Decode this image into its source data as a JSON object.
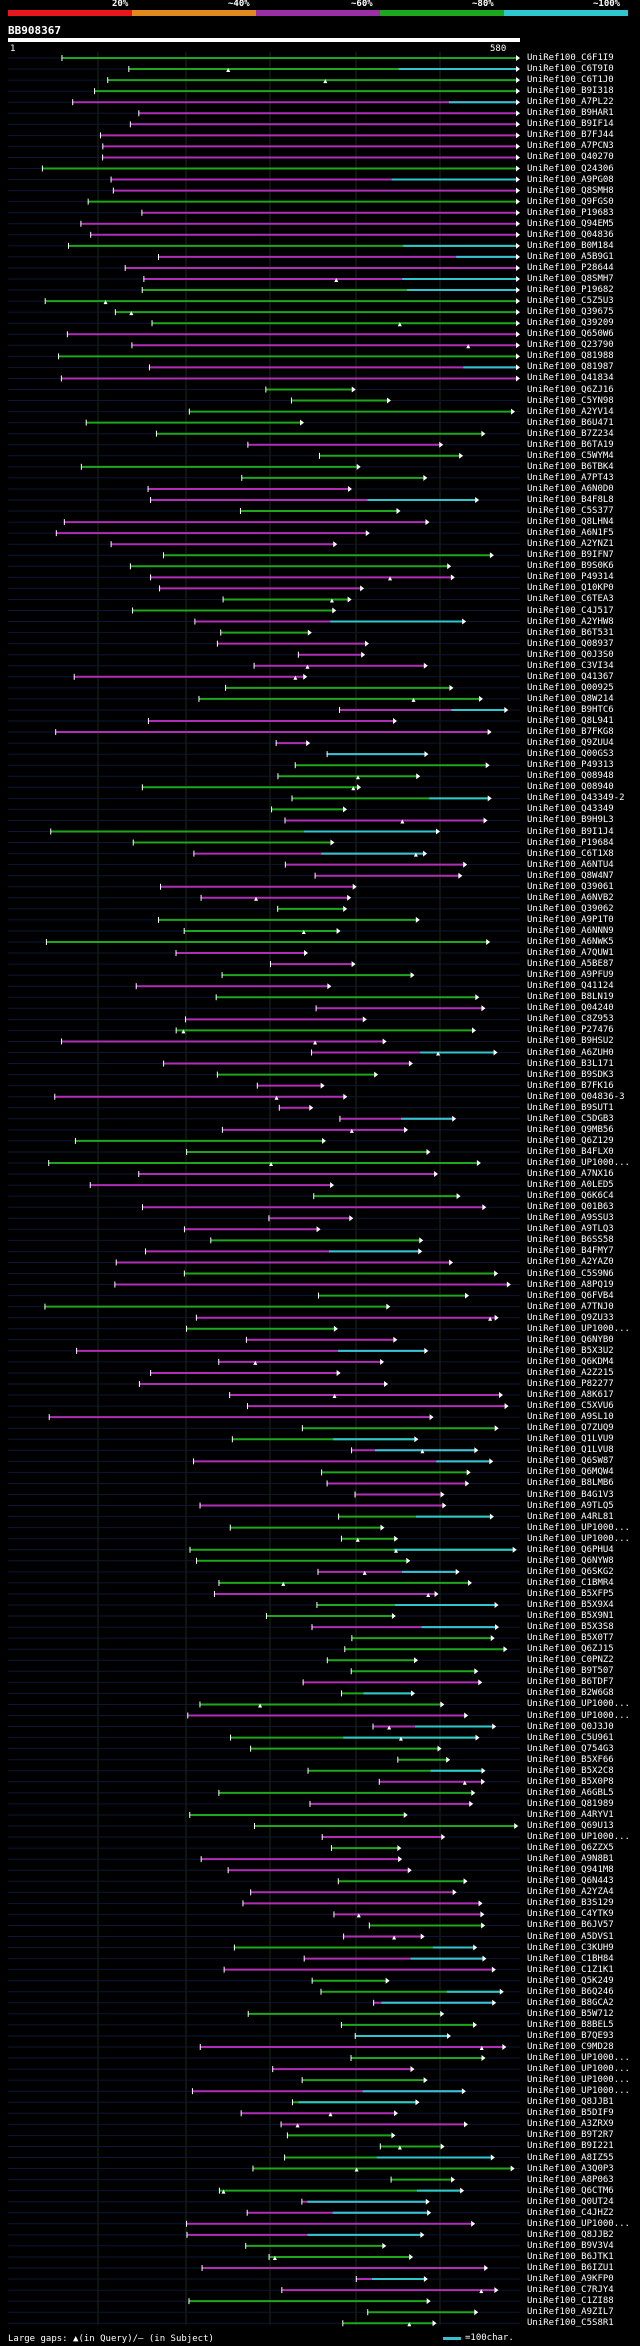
{
  "legend": {
    "labels": [
      "20%",
      "~40%",
      "~60%",
      "~80%",
      "~100%"
    ],
    "colors": [
      "#e8171d",
      "#e08a1f",
      "#9a2fa6",
      "#1ea61e",
      "#2fc7cf"
    ]
  },
  "header": {
    "query_id": "BB908367",
    "ruler_start": "1",
    "ruler_end": "580"
  },
  "footer": {
    "gaps_text": "Large gaps: ▲(in Query)/– (in Subject)",
    "scale_text": "=100char."
  },
  "hits": [
    "UniRef100_C6F1I9",
    "UniRef100_C6T9I0",
    "UniRef100_C6T1J0",
    "UniRef100_B9I318",
    "UniRef100_A7PL22",
    "UniRef100_B9HAR1",
    "UniRef100_B9IF14",
    "UniRef100_B7FJ44",
    "UniRef100_A7PCN3",
    "UniRef100_Q40270",
    "UniRef100_Q24306",
    "UniRef100_A9PG08",
    "UniRef100_Q8SMH8",
    "UniRef100_Q9FGS0",
    "UniRef100_P19683",
    "UniRef100_Q94EM5",
    "UniRef100_Q04836",
    "UniRef100_B0M184",
    "UniRef100_A5B9G1",
    "UniRef100_P28644",
    "UniRef100_Q8SMH7",
    "UniRef100_P19682",
    "UniRef100_C5Z5U3",
    "UniRef100_Q39675",
    "UniRef100_Q39209",
    "UniRef100_Q650W6",
    "UniRef100_Q23790",
    "UniRef100_Q81988",
    "UniRef100_Q81987",
    "UniRef100_Q41834",
    "UniRef100_Q6ZJ16",
    "UniRef100_C5YN98",
    "UniRef100_A2YV14",
    "UniRef100_B6U471",
    "UniRef100_B7Z234",
    "UniRef100_B6TA19",
    "UniRef100_C5WYM4",
    "UniRef100_B6TBK4",
    "UniRef100_A7PT43",
    "UniRef100_A6N0D0",
    "UniRef100_B4F8L8",
    "UniRef100_C5S377",
    "UniRef100_Q8LHN4",
    "UniRef100_A6N1F5",
    "UniRef100_A2YNZ1",
    "UniRef100_B9IFN7",
    "UniRef100_B9S0K6",
    "UniRef100_P49314",
    "UniRef100_Q10KP0",
    "UniRef100_C6TEA3",
    "UniRef100_C4J517",
    "UniRef100_A2YHW8",
    "UniRef100_B6T531",
    "UniRef100_Q08937",
    "UniRef100_Q0J3S0",
    "UniRef100_C3VI34",
    "UniRef100_Q41367",
    "UniRef100_Q00925",
    "UniRef100_Q8W214",
    "UniRef100_B9HTC6",
    "UniRef100_Q8L941",
    "UniRef100_B7FKG8",
    "UniRef100_Q9ZUU4",
    "UniRef100_Q00GS3",
    "UniRef100_P49313",
    "UniRef100_Q08948",
    "UniRef100_Q08940",
    "UniRef100_Q43349-2",
    "UniRef100_Q43349",
    "UniRef100_B9H9L3",
    "UniRef100_B9I1J4",
    "UniRef100_P19684",
    "UniRef100_C6T1X8",
    "UniRef100_A6NTU4",
    "UniRef100_Q8W4N7",
    "UniRef100_Q39061",
    "UniRef100_A6NVB2",
    "UniRef100_Q39062",
    "UniRef100_A9P1T0",
    "UniRef100_A6NNN9",
    "UniRef100_A6NWK5",
    "UniRef100_A7QUW1",
    "UniRef100_A5BE87",
    "UniRef100_A9PFU9",
    "UniRef100_Q41124",
    "UniRef100_B8LN19",
    "UniRef100_Q04240",
    "UniRef100_C8Z953",
    "UniRef100_P27476",
    "UniRef100_B9HSU2",
    "UniRef100_A6ZUH0",
    "UniRef100_B3L171",
    "UniRef100_B9SDK3",
    "UniRef100_B7FK16",
    "UniRef100_Q04836-3",
    "UniRef100_B9SUT1",
    "UniRef100_C5DGB3",
    "UniRef100_Q9MB56",
    "UniRef100_Q6Z129",
    "UniRef100_B4FLX0",
    "UniRef100_UP1000...",
    "UniRef100_A7NX16",
    "UniRef100_A0LED5",
    "UniRef100_Q6K6C4",
    "UniRef100_Q01B63",
    "UniRef100_A9SSU3",
    "UniRef100_A9TLQ3",
    "UniRef100_B6SS58",
    "UniRef100_B4FMY7",
    "UniRef100_A2YAZ0",
    "UniRef100_C5S9N6",
    "UniRef100_A8PQ19",
    "UniRef100_Q6FVB4",
    "UniRef100_A7TNJ0",
    "UniRef100_Q9ZU33",
    "UniRef100_UP1000...",
    "UniRef100_Q6NYB0",
    "UniRef100_B5X3U2",
    "UniRef100_Q6KDM4",
    "UniRef100_A2Z215",
    "UniRef100_P82277",
    "UniRef100_A8K617",
    "UniRef100_C5XVU6",
    "UniRef100_A9SL10",
    "UniRef100_Q7ZUQ9",
    "UniRef100_Q1LVU9",
    "UniRef100_Q1LVU8",
    "UniRef100_Q6SW87",
    "UniRef100_Q6MQW4",
    "UniRef100_B8LMB6",
    "UniRef100_B4G1V3",
    "UniRef100_A9TLQ5",
    "UniRef100_A4RL81",
    "UniRef100_UP1000...",
    "UniRef100_UP1000...",
    "UniRef100_Q6PHU4",
    "UniRef100_Q6NYW8",
    "UniRef100_Q6SKG2",
    "UniRef100_C1BMR4",
    "UniRef100_B5XFP5",
    "UniRef100_B5X9X4",
    "UniRef100_B5X9N1",
    "UniRef100_B5X3S8",
    "UniRef100_B5X0T7",
    "UniRef100_Q6ZJ15",
    "UniRef100_C0PNZ2",
    "UniRef100_B9T507",
    "UniRef100_B6TDF7",
    "UniRef100_B2W6G8",
    "UniRef100_UP1000...",
    "UniRef100_UP1000...",
    "UniRef100_Q0J3J0",
    "UniRef100_C5U961",
    "UniRef100_Q754G3",
    "UniRef100_B5XF66",
    "UniRef100_B5X2C8",
    "UniRef100_B5X0P8",
    "UniRef100_A6GBL5",
    "UniRef100_Q81989",
    "UniRef100_A4RYV1",
    "UniRef100_Q69U13",
    "UniRef100_UP1000...",
    "UniRef100_Q6ZZX5",
    "UniRef100_A9N8B1",
    "UniRef100_Q941M8",
    "UniRef100_Q6N443",
    "UniRef100_A2YZA4",
    "UniRef100_B3S129",
    "UniRef100_C4YTK9",
    "UniRef100_B6JV57",
    "UniRef100_A5DVS1",
    "UniRef100_C3KUH9",
    "UniRef100_C1BH84",
    "UniRef100_C1Z1K1",
    "UniRef100_Q5K249",
    "UniRef100_B6Q246",
    "UniRef100_B8GCA2",
    "UniRef100_B5W712",
    "UniRef100_B8BEL5",
    "UniRef100_B7QE93",
    "UniRef100_C9MD28",
    "UniRef100_UP1000...",
    "UniRef100_UP1000...",
    "UniRef100_UP1000...",
    "UniRef100_UP1000...",
    "UniRef100_Q8JJB1",
    "UniRef100_B5DIF9",
    "UniRef100_A3ZRX9",
    "UniRef100_B9T2R7",
    "UniRef100_B9I221",
    "UniRef100_A8IZ55",
    "UniRef100_A3Q0P3",
    "UniRef100_A8P063",
    "UniRef100_Q6CTM6",
    "UniRef100_Q0UT24",
    "UniRef100_C4JHZ2",
    "UniRef100_UP1000...",
    "UniRef100_Q8JJB2",
    "UniRef100_B9V3V4",
    "UniRef100_B6JTK1",
    "UniRef100_B6IZU1",
    "UniRef100_A9KFP0",
    "UniRef100_C7RJY4",
    "UniRef100_C1ZI88",
    "UniRef100_A9ZIL7",
    "UniRef100_C5S8R1"
  ]
}
